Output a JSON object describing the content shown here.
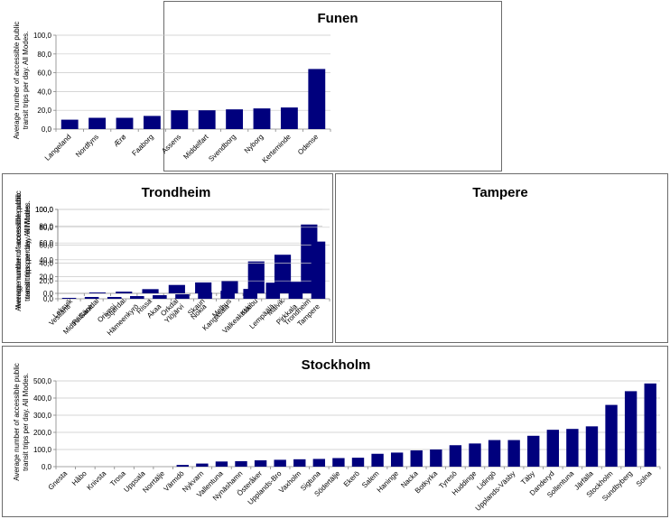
{
  "chart_data": [
    {
      "id": "funen",
      "type": "bar",
      "title": "Funen",
      "ylabel_lines": [
        "Average number of accessible public",
        "transit trips per day. All Modes."
      ],
      "ylim": [
        0,
        100
      ],
      "yticks": [
        "0,0",
        "20,0",
        "40,0",
        "60,0",
        "80,0",
        "100,0"
      ],
      "bar_color": "#00007d",
      "categories": [
        "Langeland",
        "Nordfyns",
        "Ærø",
        "Faaborg",
        "Assens",
        "Middelfart",
        "Svendborg",
        "Nyborg",
        "Kerteminde",
        "Odense"
      ],
      "values": [
        10,
        12,
        12,
        14,
        20,
        20,
        21,
        22,
        23,
        64
      ]
    },
    {
      "id": "trondheim",
      "type": "bar",
      "title": "Trondheim",
      "ylabel_lines": [
        "Average number of accessible public",
        "transit trips per day. All Modes."
      ],
      "ylim": [
        0,
        100
      ],
      "yticks": [
        "0,0",
        "20,0",
        "40,0",
        "60,0",
        "80,0",
        "100,0"
      ],
      "bar_color": "#00007d",
      "categories": [
        "Leksvik",
        "Midtre Gauldal",
        "Stjørdal",
        "Rissa",
        "Orkdal",
        "Skaun",
        "Melhus",
        "Klæbu",
        "Malvik",
        "Trondheim"
      ],
      "values": [
        0,
        1,
        2,
        5,
        10,
        13,
        15,
        38,
        46,
        82
      ]
    },
    {
      "id": "tampere",
      "type": "bar",
      "title": "Tampere",
      "ylabel_lines": [
        "Average number of accessible public",
        "transit trips per day. All Modes."
      ],
      "ylim": [
        0,
        100
      ],
      "yticks": [
        "0,0",
        "20,0",
        "40,0",
        "60,0",
        "80,0",
        "100,0"
      ],
      "bar_color": "#00007d",
      "categories": [
        "Vesilahti",
        "Pälkäne",
        "Orivesi",
        "Hämeenkyrö",
        "Akaa",
        "Ylöjärvi",
        "Nokia",
        "Kangasala",
        "Valkeakoski",
        "Lempäälä",
        "Pirkkala",
        "Tampere"
      ],
      "values": [
        1,
        2,
        2,
        3,
        4,
        5,
        7,
        9,
        11,
        18,
        19,
        64
      ]
    },
    {
      "id": "stockholm",
      "type": "bar",
      "title": "Stockholm",
      "ylabel_lines": [
        "Average number of accessible public",
        "transit trips per day. All Modes."
      ],
      "ylim": [
        0,
        500
      ],
      "yticks": [
        "0,0",
        "100,0",
        "200,0",
        "300,0",
        "400,0",
        "500,0"
      ],
      "bar_color": "#00007d",
      "categories": [
        "Gnesta",
        "Håbo",
        "Knivsta",
        "Trosa",
        "Uppsala",
        "Norrtälje",
        "Värmdö",
        "Nykvarn",
        "Vallentuna",
        "Nynäshamn",
        "Österåker",
        "Upplands-Bro",
        "Vaxholm",
        "Sigtuna",
        "Södertälje",
        "Ekerö",
        "Salem",
        "Haninge",
        "Nacka",
        "Botkyrka",
        "Tyresö",
        "Huddinge",
        "Lidingö",
        "Upplands-Väsby",
        "Täby",
        "Danderyd",
        "Sollentuna",
        "Järfälla",
        "Stockholm",
        "Sundbyberg",
        "Solna"
      ],
      "values": [
        0,
        0,
        0,
        0,
        0,
        0,
        10,
        18,
        30,
        32,
        37,
        40,
        43,
        45,
        50,
        52,
        75,
        82,
        95,
        100,
        125,
        135,
        155,
        155,
        180,
        215,
        220,
        235,
        360,
        440,
        485
      ]
    }
  ]
}
